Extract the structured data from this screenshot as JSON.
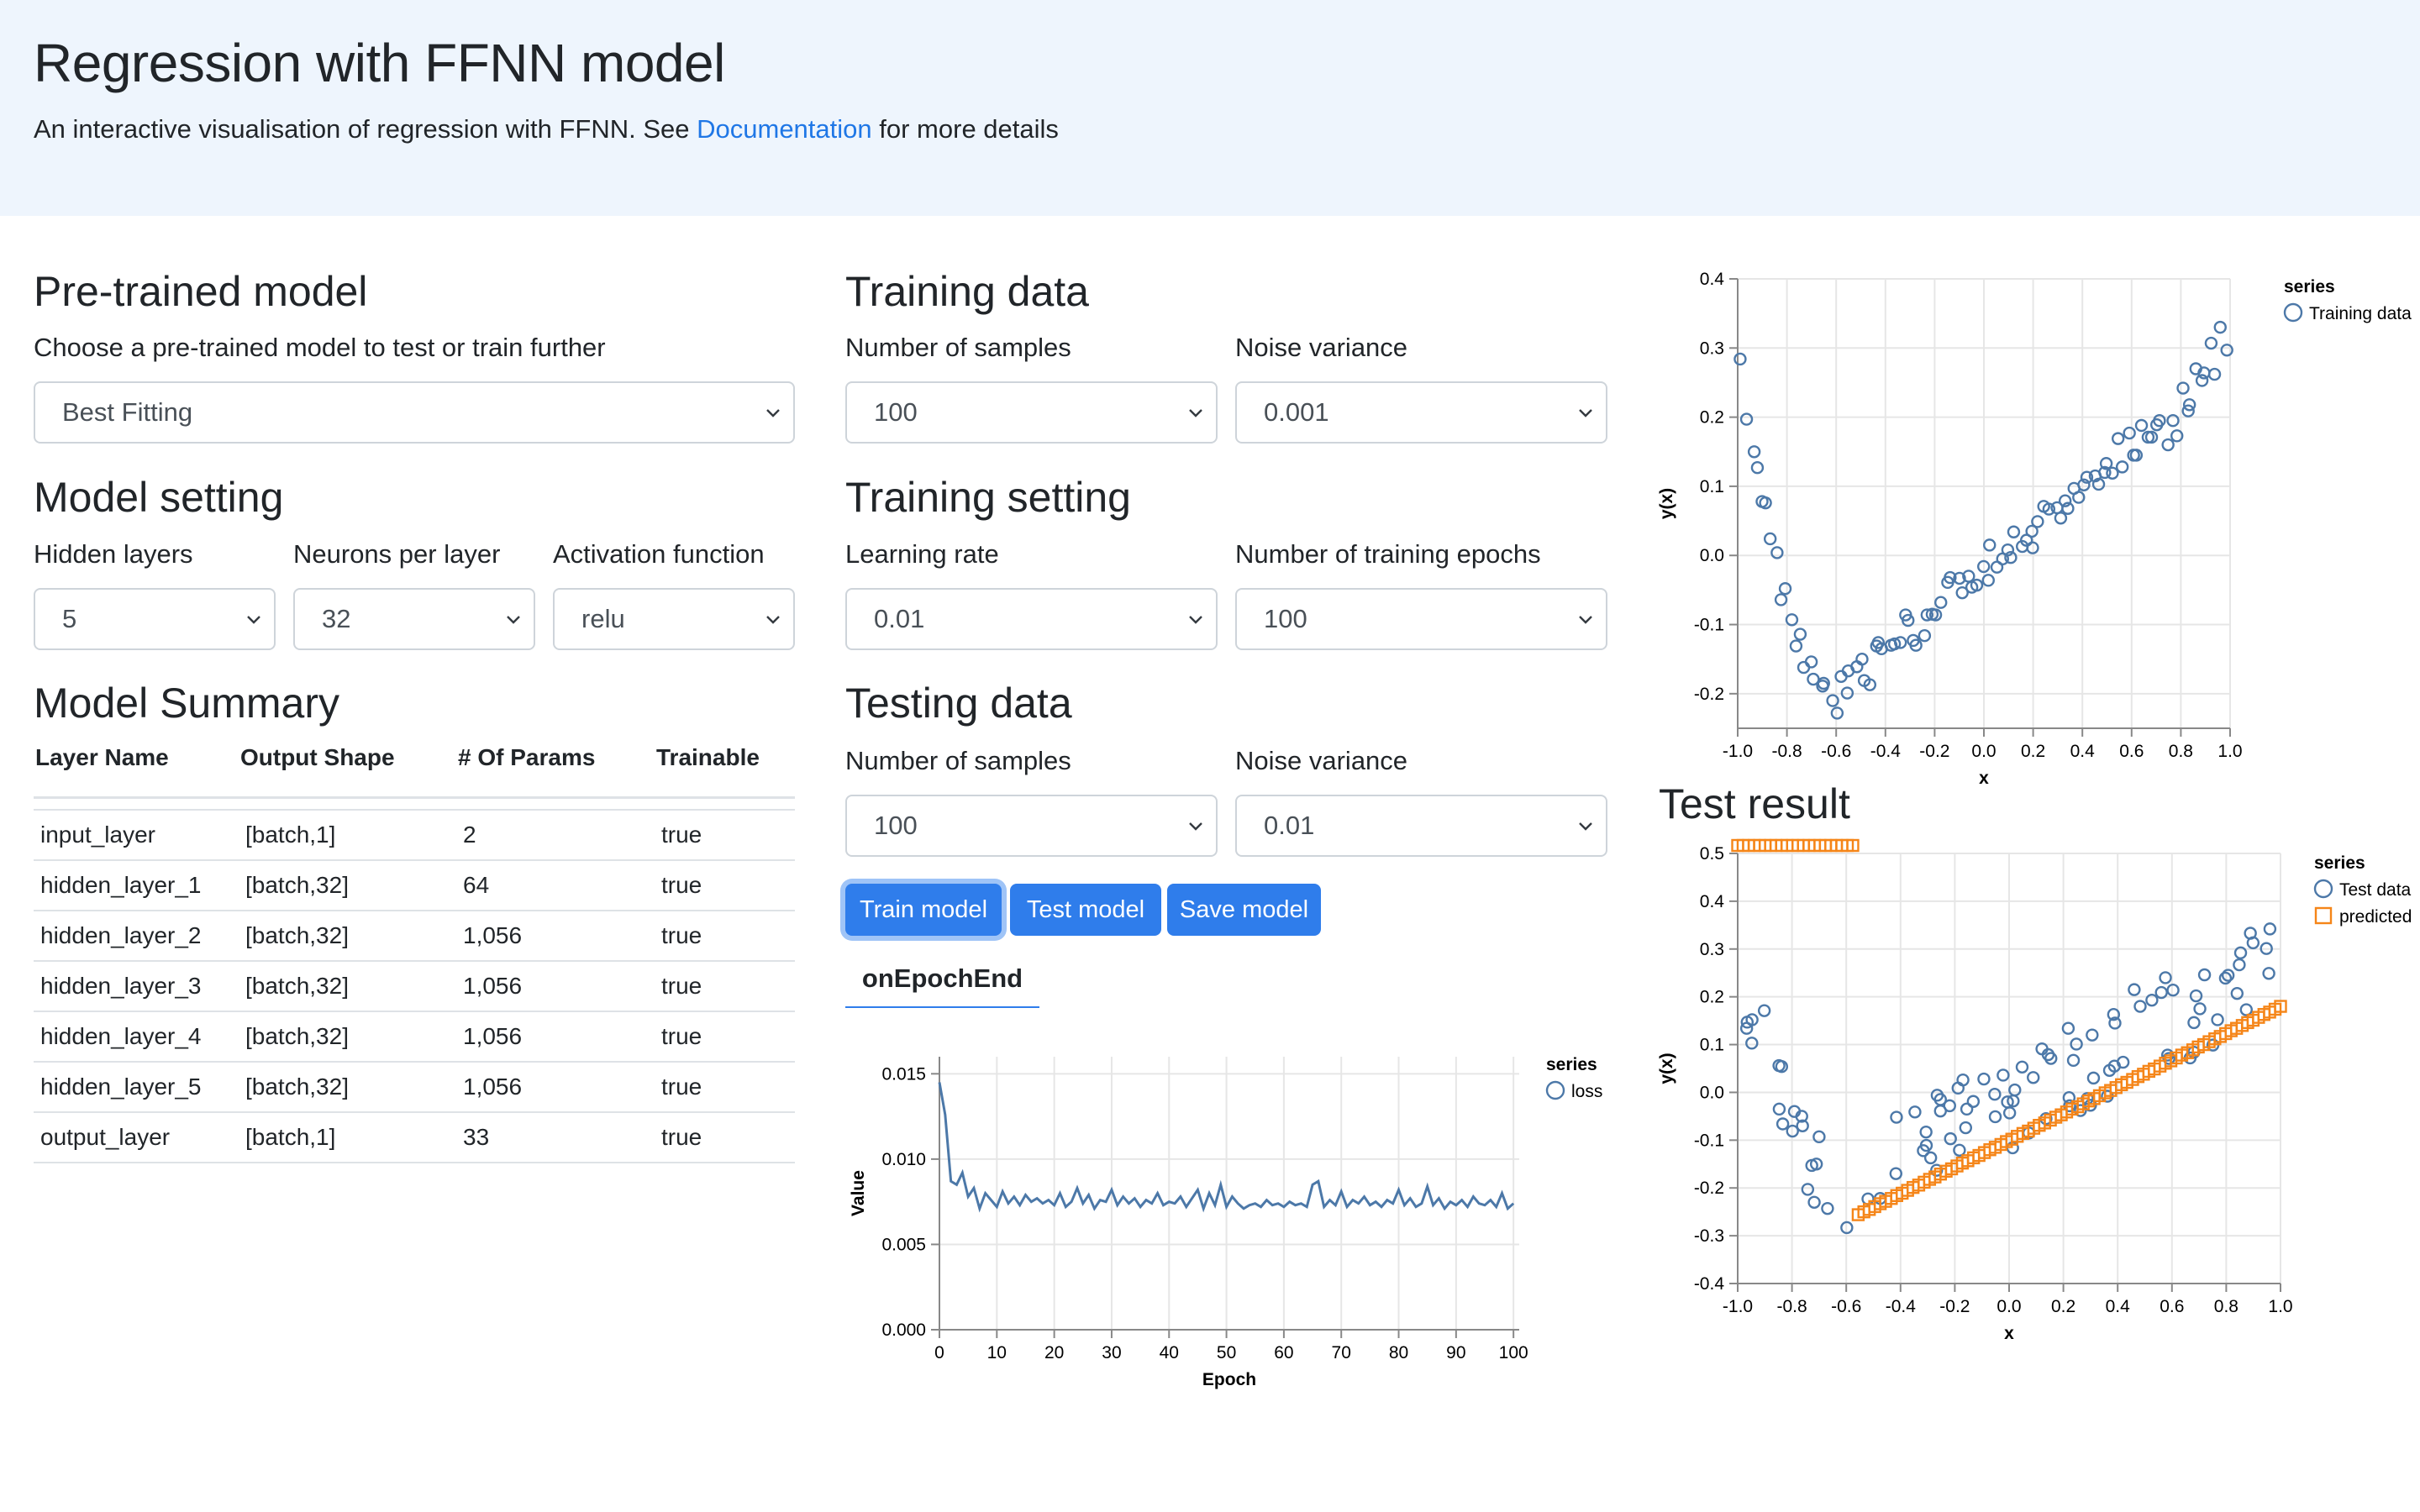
{
  "header": {
    "title": "Regression with FFNN model",
    "subtitle_pre": "An interactive visualisation of regression with FFNN. See",
    "doc_link": "Documentation",
    "subtitle_post": "for more details"
  },
  "pretrained": {
    "heading": "Pre-trained model",
    "label": "Choose a pre-trained model to test or train further",
    "value": "Best Fitting"
  },
  "model_setting": {
    "heading": "Model setting",
    "hidden_layers_label": "Hidden layers",
    "hidden_layers": "5",
    "neurons_label": "Neurons per layer",
    "neurons": "32",
    "activation_label": "Activation function",
    "activation": "relu"
  },
  "summary": {
    "heading": "Model Summary",
    "columns": [
      "Layer Name",
      "Output Shape",
      "# Of Params",
      "Trainable"
    ],
    "rows": [
      [
        "input_layer",
        "[batch,1]",
        "2",
        "true"
      ],
      [
        "hidden_layer_1",
        "[batch,32]",
        "64",
        "true"
      ],
      [
        "hidden_layer_2",
        "[batch,32]",
        "1,056",
        "true"
      ],
      [
        "hidden_layer_3",
        "[batch,32]",
        "1,056",
        "true"
      ],
      [
        "hidden_layer_4",
        "[batch,32]",
        "1,056",
        "true"
      ],
      [
        "hidden_layer_5",
        "[batch,32]",
        "1,056",
        "true"
      ],
      [
        "output_layer",
        "[batch,1]",
        "33",
        "true"
      ]
    ]
  },
  "training_data": {
    "heading": "Training data",
    "samples_label": "Number of samples",
    "samples": "100",
    "noise_label": "Noise variance",
    "noise": "0.001"
  },
  "training_setting": {
    "heading": "Training setting",
    "lr_label": "Learning rate",
    "lr": "0.01",
    "epochs_label": "Number of training epochs",
    "epochs": "100"
  },
  "testing_data": {
    "heading": "Testing data",
    "samples_label": "Number of samples",
    "samples": "100",
    "noise_label": "Noise variance",
    "noise": "0.01"
  },
  "buttons": {
    "train": "Train model",
    "test": "Test model",
    "save": "Save model"
  },
  "tab": {
    "label": "onEpochEnd"
  },
  "test_result": {
    "heading": "Test result"
  },
  "colors": {
    "accent": "#2f7deb",
    "blue_series": "#4c78a8",
    "orange_series": "#f58518"
  },
  "chart_data": [
    {
      "id": "training-data-chart",
      "type": "scatter",
      "xlabel": "x",
      "ylabel": "y(x)",
      "xlim": [
        -1.0,
        1.0
      ],
      "ylim": [
        -0.25,
        0.4
      ],
      "x_ticks": [
        "-1.0",
        "-0.8",
        "-0.6",
        "-0.4",
        "-0.2",
        "0.0",
        "0.2",
        "0.4",
        "0.6",
        "0.8",
        "1.0"
      ],
      "y_ticks": [
        "0.4",
        "0.3",
        "0.2",
        "0.1",
        "0.0",
        "-0.1",
        "-0.2"
      ],
      "legend_title": "series",
      "legend_position": "top-right",
      "grid": true,
      "series": [
        {
          "name": "Training data",
          "color": "#4c78a8",
          "marker": "circle",
          "points": []
        }
      ]
    },
    {
      "id": "loss-chart",
      "type": "line",
      "xlabel": "Epoch",
      "ylabel": "Value",
      "xlim": [
        0,
        101
      ],
      "ylim": [
        0,
        0.016
      ],
      "x_ticks": [
        "0",
        "10",
        "20",
        "30",
        "40",
        "50",
        "60",
        "70",
        "80",
        "90",
        "100"
      ],
      "y_ticks": [
        "0.015",
        "0.010",
        "0.005",
        "0.000"
      ],
      "legend_title": "series",
      "legend_position": "top-right",
      "grid": true,
      "series": [
        {
          "name": "loss",
          "color": "#4c78a8",
          "values": [
            0.0145,
            0.0126,
            0.0087,
            0.0085,
            0.0092,
            0.0078,
            0.0083,
            0.0071,
            0.008,
            0.0076,
            0.0072,
            0.0081,
            0.0074,
            0.0078,
            0.0073,
            0.0079,
            0.0075,
            0.0077,
            0.0074,
            0.0076,
            0.0073,
            0.008,
            0.0072,
            0.0075,
            0.0083,
            0.0074,
            0.0079,
            0.0071,
            0.0076,
            0.0075,
            0.0082,
            0.0073,
            0.0078,
            0.0074,
            0.0077,
            0.0072,
            0.0076,
            0.0074,
            0.008,
            0.0073,
            0.0075,
            0.0074,
            0.0078,
            0.0072,
            0.0077,
            0.0082,
            0.0071,
            0.008,
            0.0073,
            0.0085,
            0.0072,
            0.0078,
            0.0074,
            0.0071,
            0.0073,
            0.0074,
            0.0072,
            0.0076,
            0.0073,
            0.0074,
            0.0072,
            0.0075,
            0.0073,
            0.0074,
            0.0072,
            0.0085,
            0.0087,
            0.0072,
            0.0076,
            0.0073,
            0.0081,
            0.0072,
            0.0076,
            0.0074,
            0.0078,
            0.0073,
            0.0075,
            0.0072,
            0.0076,
            0.0074,
            0.0082,
            0.0073,
            0.0077,
            0.0072,
            0.0074,
            0.0084,
            0.0073,
            0.0077,
            0.0071,
            0.0075,
            0.0073,
            0.0076,
            0.0072,
            0.0078,
            0.0074,
            0.0073,
            0.0076,
            0.0072,
            0.008,
            0.0071,
            0.0074
          ]
        }
      ]
    },
    {
      "id": "test-result-chart",
      "type": "scatter",
      "xlabel": "x",
      "ylabel": "y(x)",
      "xlim": [
        -1.0,
        1.0
      ],
      "ylim": [
        -0.4,
        0.5
      ],
      "x_ticks": [
        "-1.0",
        "-0.8",
        "-0.6",
        "-0.4",
        "-0.2",
        "0.0",
        "0.2",
        "0.4",
        "0.6",
        "0.8",
        "1.0"
      ],
      "y_ticks": [
        "0.5",
        "0.4",
        "0.3",
        "0.2",
        "0.1",
        "0.0",
        "-0.1",
        "-0.2",
        "-0.3",
        "-0.4"
      ],
      "legend_title": "series",
      "legend_position": "top-right",
      "grid": true,
      "series": [
        {
          "name": "Test data",
          "color": "#4c78a8",
          "marker": "circle",
          "points": []
        },
        {
          "name": "predicted",
          "color": "#f58518",
          "marker": "square",
          "points": []
        }
      ]
    }
  ]
}
